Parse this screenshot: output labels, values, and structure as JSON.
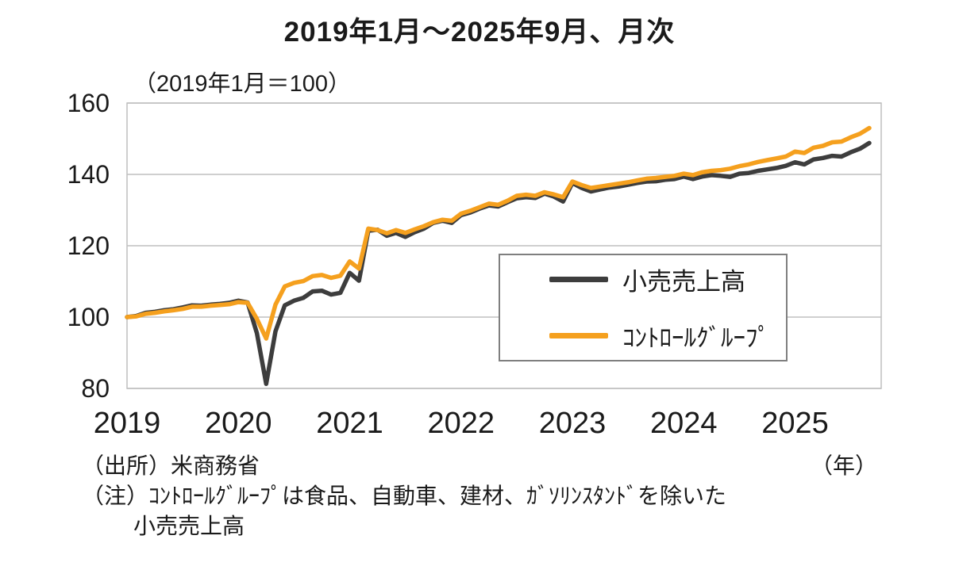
{
  "title": "2019年1月～2025年9月、月次",
  "subtitle": "（2019年1月＝100）",
  "source": "（出所）米商務省",
  "year_unit": "（年）",
  "note_line1": "（注）ｺﾝﾄﾛｰﾙｸﾞﾙｰﾌﾟは食品、自動車、建材、ｶﾞｿﾘﾝｽﾀﾝﾄﾞを除いた",
  "note_line2": "小売売上高",
  "legend": {
    "items": [
      {
        "label": "小売売上高",
        "color": "#3d3d3d"
      },
      {
        "label": "ｺﾝﾄﾛｰﾙｸﾞﾙｰﾌﾟ",
        "color": "#f5a01e"
      }
    ]
  },
  "colors": {
    "retail_sales": "#3d3d3d",
    "control_group": "#f5a01e",
    "grid": "#bfbfbf"
  },
  "chart_data": {
    "type": "line",
    "title": "2019年1月～2025年9月、月次",
    "subtitle": "（2019年1月＝100）",
    "frequency": "monthly",
    "x_start": "2019-01",
    "x_end": "2025-09",
    "index_base": "2019-01=100",
    "xticks": [
      "2019",
      "2020",
      "2021",
      "2022",
      "2023",
      "2024",
      "2025"
    ],
    "yticks": [
      80,
      100,
      120,
      140,
      160
    ],
    "ylim": [
      80,
      160
    ],
    "grid": "horizontal",
    "legend_position": "inside-right",
    "series": [
      {
        "name": "小売売上高",
        "color": "#3d3d3d",
        "values": [
          100.0,
          100.3,
          101.2,
          101.5,
          101.9,
          102.2,
          102.7,
          103.3,
          103.2,
          103.5,
          103.7,
          104.0,
          104.6,
          104.1,
          95.5,
          81.3,
          96.0,
          103.3,
          104.6,
          105.4,
          107.2,
          107.4,
          106.3,
          106.8,
          112.4,
          110.2,
          124.2,
          124.5,
          122.8,
          123.6,
          122.5,
          123.8,
          124.8,
          126.4,
          127.0,
          126.4,
          128.6,
          129.3,
          130.4,
          131.3,
          131.0,
          132.2,
          133.3,
          133.6,
          133.4,
          134.6,
          133.8,
          132.4,
          137.6,
          136.2,
          135.2,
          135.8,
          136.3,
          136.6,
          137.1,
          137.6,
          138.0,
          138.1,
          138.5,
          138.7,
          139.4,
          138.7,
          139.4,
          139.8,
          139.6,
          139.3,
          140.2,
          140.4,
          141.0,
          141.4,
          141.8,
          142.4,
          143.4,
          142.8,
          144.2,
          144.6,
          145.2,
          145.0,
          146.2,
          147.2,
          148.8
        ]
      },
      {
        "name": "ｺﾝﾄﾛｰﾙｸﾞﾙｰﾌﾟ",
        "color": "#f5a01e",
        "values": [
          100.0,
          100.2,
          100.9,
          101.2,
          101.6,
          101.9,
          102.3,
          102.9,
          102.9,
          103.2,
          103.4,
          103.6,
          104.2,
          104.0,
          99.5,
          94.0,
          103.5,
          108.6,
          109.6,
          110.1,
          111.5,
          111.8,
          111.0,
          111.6,
          115.6,
          113.6,
          124.8,
          124.4,
          123.5,
          124.4,
          123.6,
          124.6,
          125.5,
          126.6,
          127.3,
          127.0,
          129.0,
          129.8,
          130.8,
          131.8,
          131.5,
          132.6,
          134.0,
          134.3,
          134.0,
          135.0,
          134.4,
          133.6,
          138.0,
          137.0,
          136.2,
          136.6,
          137.0,
          137.4,
          137.8,
          138.3,
          138.8,
          139.0,
          139.3,
          139.6,
          140.2,
          139.8,
          140.6,
          141.0,
          141.2,
          141.6,
          142.3,
          142.8,
          143.5,
          144.0,
          144.5,
          145.0,
          146.4,
          146.0,
          147.5,
          148.0,
          149.0,
          149.2,
          150.4,
          151.4,
          153.0
        ]
      }
    ]
  }
}
